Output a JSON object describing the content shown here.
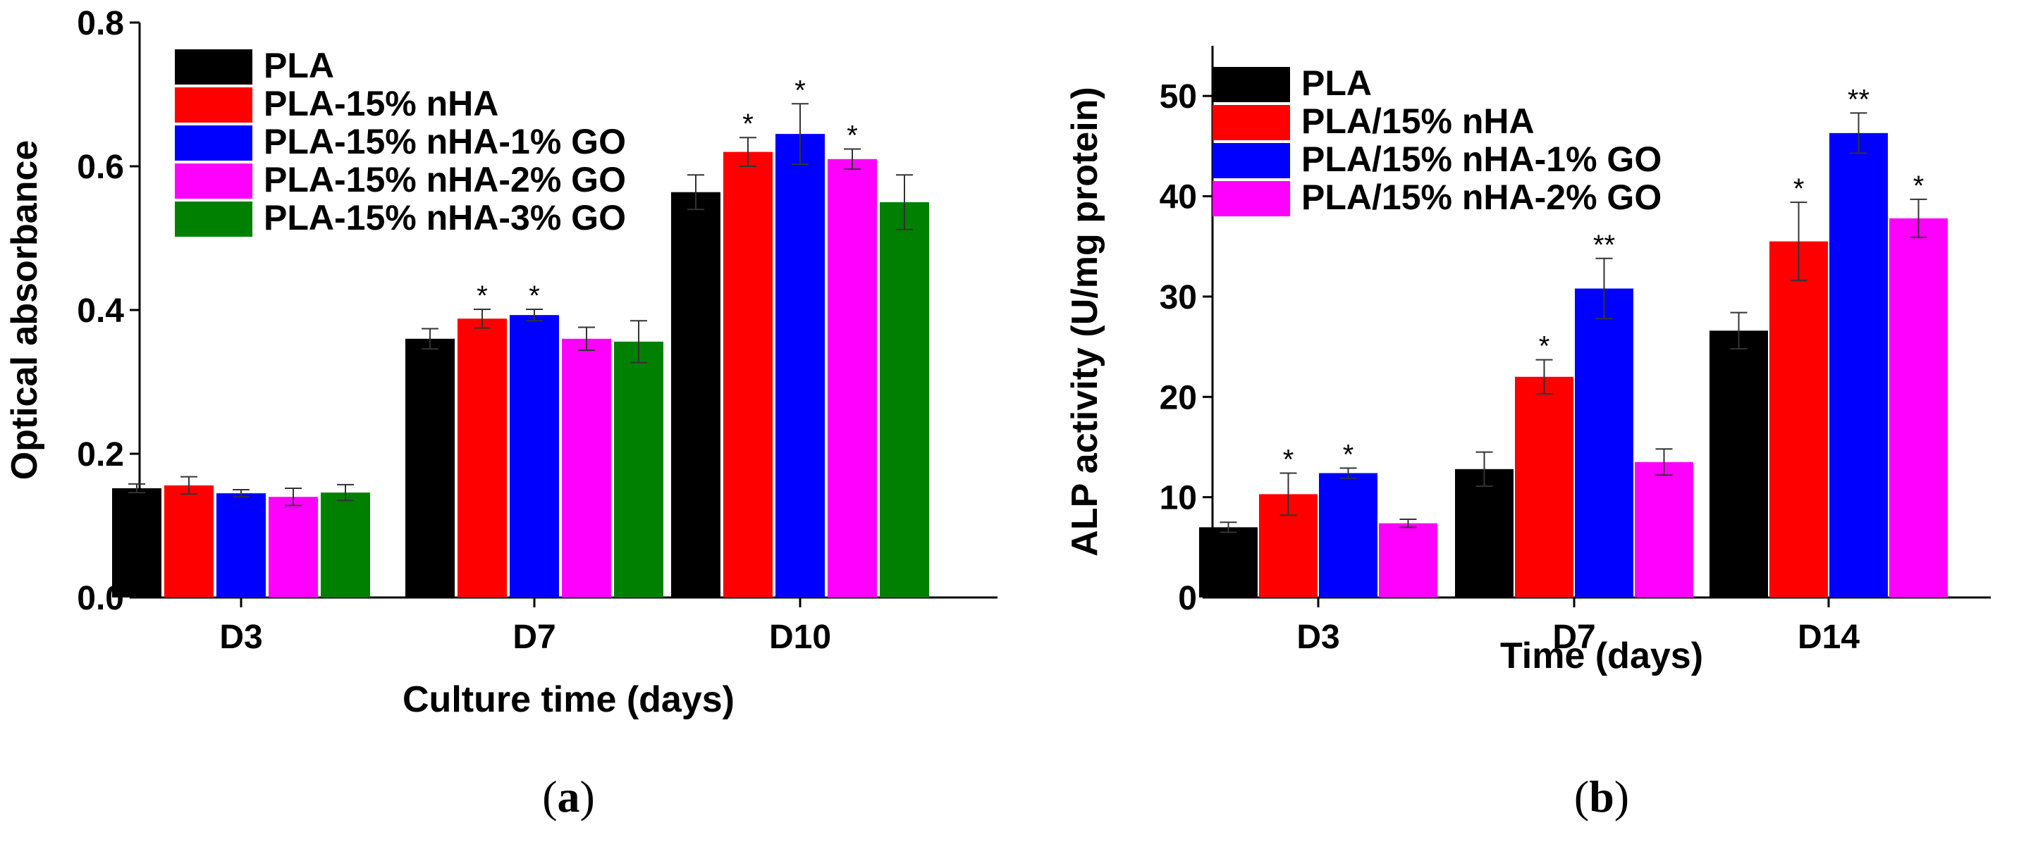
{
  "chart_data": [
    {
      "panel_label": "a",
      "type": "bar",
      "categories": [
        "D3",
        "D7",
        "D10"
      ],
      "xlabel": "Culture time (days)",
      "ylabel": "Optical absorbance",
      "ylim": [
        0,
        0.8
      ],
      "yticks": [
        0.0,
        0.2,
        0.4,
        0.6,
        0.8
      ],
      "yticklabels": [
        "0.0",
        "0.2",
        "0.4",
        "0.6",
        "0.8"
      ],
      "legend_position": "top-left",
      "grid": false,
      "series": [
        {
          "name": "PLA",
          "color": "#000000",
          "values": [
            0.152,
            0.36,
            0.564
          ],
          "errors": [
            0.006,
            0.014,
            0.024
          ],
          "significance": [
            "",
            "",
            ""
          ]
        },
        {
          "name": "PLA-15% nHA",
          "color": "#ff0000",
          "values": [
            0.156,
            0.388,
            0.62
          ],
          "errors": [
            0.012,
            0.013,
            0.02
          ],
          "significance": [
            "",
            "*",
            "*"
          ]
        },
        {
          "name": "PLA-15% nHA-1% GO",
          "color": "#0000ff",
          "values": [
            0.145,
            0.393,
            0.645
          ],
          "errors": [
            0.005,
            0.008,
            0.042
          ],
          "significance": [
            "",
            "*",
            "*"
          ]
        },
        {
          "name": "PLA-15% nHA-2% GO",
          "color": "#ff00ff",
          "values": [
            0.14,
            0.36,
            0.61
          ],
          "errors": [
            0.012,
            0.016,
            0.014
          ],
          "significance": [
            "",
            "",
            "*"
          ]
        },
        {
          "name": "PLA-15% nHA-3% GO",
          "color": "#008000",
          "values": [
            0.146,
            0.356,
            0.55
          ],
          "errors": [
            0.011,
            0.029,
            0.038
          ],
          "significance": [
            "",
            "",
            ""
          ]
        }
      ]
    },
    {
      "panel_label": "b",
      "type": "bar",
      "categories": [
        "D3",
        "D7",
        "D14"
      ],
      "xlabel": "Time (days)",
      "ylabel": "ALP activity (U/mg protein)",
      "ylim": [
        0,
        55
      ],
      "yticks": [
        0,
        10,
        20,
        30,
        40,
        50
      ],
      "yticklabels": [
        "0",
        "10",
        "20",
        "30",
        "40",
        "50"
      ],
      "legend_position": "top-left",
      "grid": false,
      "series": [
        {
          "name": "PLA",
          "color": "#000000",
          "values": [
            7.0,
            12.8,
            26.6
          ],
          "errors": [
            0.5,
            1.7,
            1.8
          ],
          "significance": [
            "",
            "",
            ""
          ]
        },
        {
          "name": "PLA/15% nHA",
          "color": "#ff0000",
          "values": [
            10.3,
            22.0,
            35.5
          ],
          "errors": [
            2.1,
            1.7,
            3.9
          ],
          "significance": [
            "*",
            "*",
            "*"
          ]
        },
        {
          "name": "PLA/15% nHA-1% GO",
          "color": "#0000ff",
          "values": [
            12.4,
            30.8,
            46.3
          ],
          "errors": [
            0.5,
            3.0,
            2.0
          ],
          "significance": [
            "*",
            "**",
            "**"
          ]
        },
        {
          "name": "PLA/15% nHA-2% GO",
          "color": "#ff00ff",
          "values": [
            7.4,
            13.5,
            37.8
          ],
          "errors": [
            0.4,
            1.3,
            1.9
          ],
          "significance": [
            "",
            "",
            "*"
          ]
        }
      ]
    }
  ]
}
